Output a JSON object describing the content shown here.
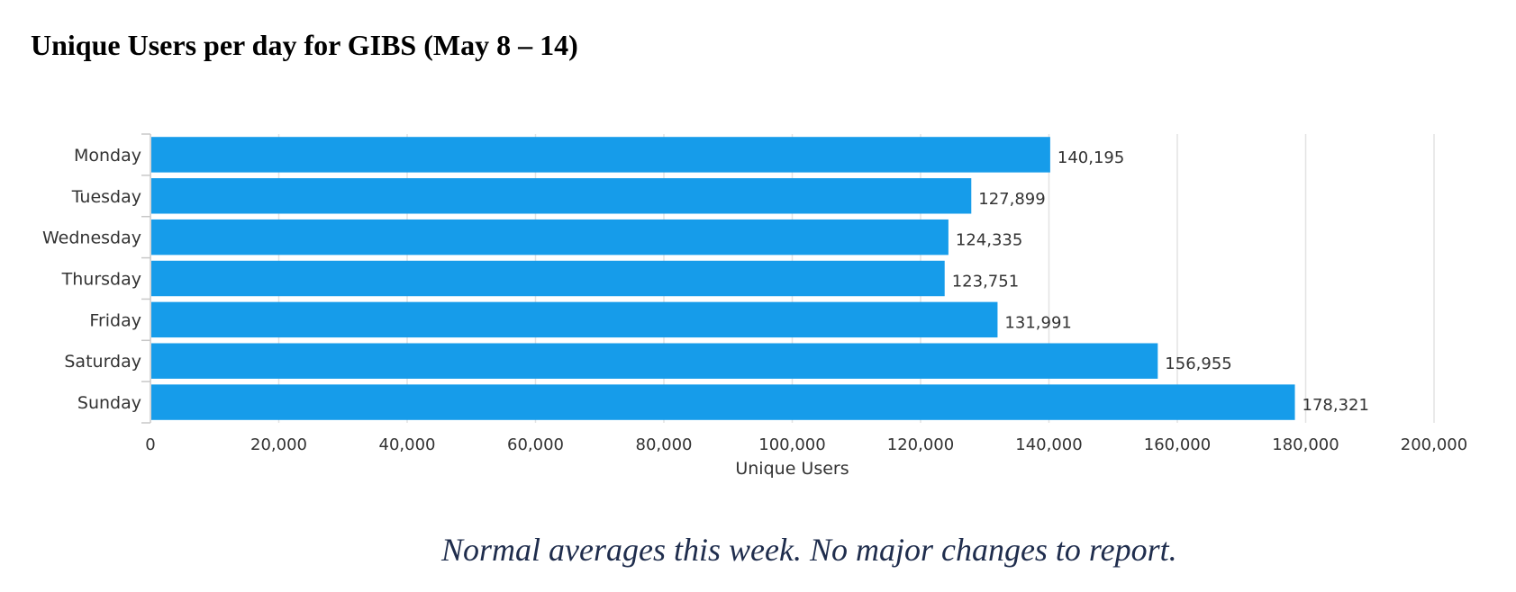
{
  "page": {
    "title": "Unique Users per day for GIBS (May 8 – 14)",
    "footnote": "Normal averages this week.  No major changes to report."
  },
  "chart_data": {
    "type": "bar",
    "orientation": "horizontal",
    "title": "",
    "xlabel": "Unique Users",
    "ylabel": "",
    "categories": [
      "Monday",
      "Tuesday",
      "Wednesday",
      "Thursday",
      "Friday",
      "Saturday",
      "Sunday"
    ],
    "values": [
      140195,
      127899,
      124335,
      123751,
      131991,
      156955,
      178321
    ],
    "value_labels": [
      "140,195",
      "127,899",
      "124,335",
      "123,751",
      "131,991",
      "156,955",
      "178,321"
    ],
    "xlim": [
      0,
      200000
    ],
    "xticks": [
      0,
      20000,
      40000,
      60000,
      80000,
      100000,
      120000,
      140000,
      160000,
      180000,
      200000
    ],
    "xtick_labels": [
      "0",
      "20,000",
      "40,000",
      "60,000",
      "80,000",
      "100,000",
      "120,000",
      "140,000",
      "160,000",
      "180,000",
      "200,000"
    ],
    "grid": true,
    "legend": "none",
    "colors": {
      "bar": "#169cea",
      "grid": "#e3e3e3",
      "axis": "#c8c8c8",
      "text": "#333333"
    }
  }
}
